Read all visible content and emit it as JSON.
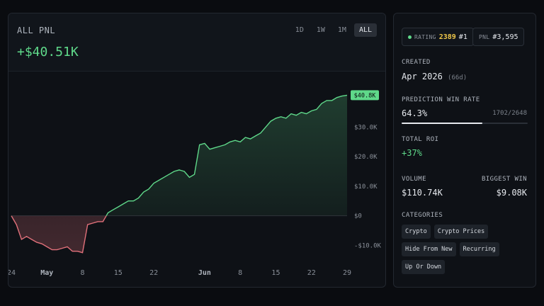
{
  "pnl": {
    "label": "ALL PNL",
    "value": "+$40.51K",
    "ranges": [
      "1D",
      "1W",
      "1M",
      "ALL"
    ],
    "active_range": "ALL"
  },
  "profile": {
    "rating_label": "RATING",
    "rating": "2389",
    "rank": "#1",
    "pnl_rank_label": "PNL",
    "pnl_rank": "#3,595",
    "created_label": "CREATED",
    "created": "Apr 2026",
    "created_days": "(66d)",
    "win_rate_label": "PREDICTION WIN RATE",
    "win_rate": "64.3%",
    "win_rate_fraction": "1702/2648",
    "win_rate_value": 0.643,
    "roi_label": "TOTAL ROI",
    "roi": "+37%",
    "volume_label": "VOLUME",
    "volume": "$110.74K",
    "biggest_win_label": "BIGGEST WIN",
    "biggest_win": "$9.08K",
    "categories_label": "CATEGORIES",
    "categories": [
      "Crypto",
      "Crypto Prices",
      "Hide From New",
      "Recurring",
      "Up Or Down"
    ]
  },
  "colors": {
    "positive": "#5fd98a",
    "negative": "#e0707a",
    "accent_rating": "#f0c84a"
  },
  "chart_data": {
    "type": "area",
    "ylim": [
      -14,
      44
    ],
    "yticks": [
      -10,
      0,
      10,
      20,
      30
    ],
    "ytick_labels": [
      "-$10.0K",
      "$0",
      "$10.0K",
      "$20.0K",
      "$30.0K"
    ],
    "xticks": [
      "24",
      "May",
      "8",
      "15",
      "22",
      "Jun",
      "8",
      "15",
      "22",
      "29"
    ],
    "xtick_days": [
      0,
      7,
      14,
      21,
      28,
      38,
      45,
      52,
      59,
      66
    ],
    "end_label": "$40.8K",
    "series": [
      {
        "x": [
          0,
          1,
          2,
          3,
          4,
          5,
          6,
          7,
          8,
          9,
          10,
          11,
          12,
          13,
          14,
          15,
          16,
          17,
          18,
          19,
          20,
          21,
          22,
          23,
          24,
          25,
          26,
          27,
          28,
          29,
          30,
          31,
          32,
          33,
          34,
          35,
          36,
          37,
          38,
          39,
          40,
          41,
          42,
          43,
          44,
          45,
          46,
          47,
          48,
          49,
          50,
          51,
          52,
          53,
          54,
          55,
          56,
          57,
          58,
          59,
          60,
          61,
          62,
          63,
          64,
          65,
          66
        ],
        "y": [
          0,
          -3,
          -8,
          -7,
          -8,
          -9,
          -9.5,
          -10.5,
          -11.5,
          -11.5,
          -11,
          -10.5,
          -12,
          -12,
          -12.5,
          -3,
          -2.5,
          -2,
          -2,
          1,
          2,
          3,
          4,
          5,
          5,
          6,
          8,
          9,
          11,
          12,
          13,
          14,
          15,
          15.5,
          15,
          13,
          14,
          24,
          24.5,
          22.5,
          23,
          23.5,
          24,
          25,
          25.5,
          25,
          26.5,
          26,
          27,
          28,
          30,
          32,
          33,
          33.5,
          33,
          34.5,
          34,
          35,
          34.5,
          35.5,
          36,
          38,
          39,
          39,
          40,
          40.5,
          40.8
        ]
      }
    ]
  }
}
